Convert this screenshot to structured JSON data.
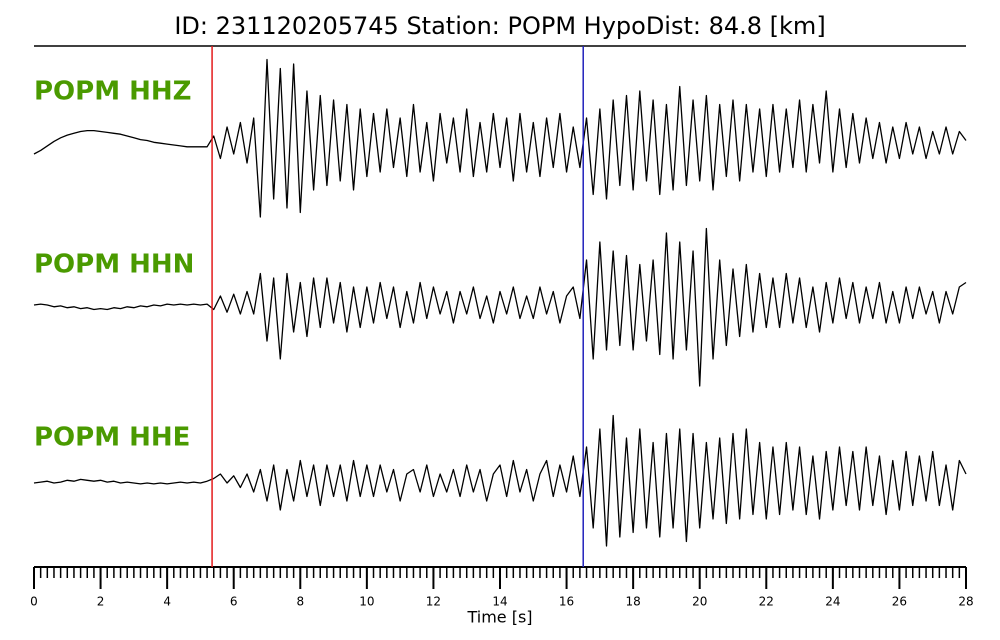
{
  "chart_data": {
    "type": "line",
    "title": "ID: 231120205745   Station: POPM   HypoDist:    84.8 [km]",
    "xlabel": "Time [s]",
    "xlim": [
      0,
      28
    ],
    "xticks": [
      0,
      2,
      4,
      6,
      8,
      10,
      12,
      14,
      16,
      18,
      20,
      22,
      24,
      26,
      28
    ],
    "xminor": [
      0,
      0.2,
      0.4,
      0.6,
      0.8,
      1,
      1.2,
      1.4,
      1.6,
      1.8,
      2,
      2.2,
      2.4,
      2.6,
      2.8,
      3,
      3.2,
      3.4,
      3.6,
      3.8,
      4,
      4.2,
      4.4,
      4.6,
      4.8,
      5,
      5.2,
      5.4,
      5.6,
      5.8,
      6,
      6.2,
      6.4,
      6.6,
      6.8,
      7,
      7.2,
      7.4,
      7.6,
      7.8,
      8,
      8.2,
      8.4,
      8.6,
      8.8,
      9,
      9.2,
      9.4,
      9.6,
      9.8,
      10,
      10.2,
      10.4,
      10.6,
      10.8,
      11,
      11.2,
      11.4,
      11.6,
      11.8,
      12,
      12.2,
      12.4,
      12.6,
      12.8,
      13,
      13.2,
      13.4,
      13.6,
      13.8,
      14,
      14.2,
      14.4,
      14.6,
      14.8,
      15,
      15.2,
      15.4,
      15.6,
      15.8,
      16,
      16.2,
      16.4,
      16.6,
      16.8,
      17,
      17.2,
      17.4,
      17.6,
      17.8,
      18,
      18.2,
      18.4,
      18.6,
      18.8,
      19,
      19.2,
      19.4,
      19.6,
      19.8,
      20,
      20.2,
      20.4,
      20.6,
      20.8,
      21,
      21.2,
      21.4,
      21.6,
      21.8,
      22,
      22.2,
      22.4,
      22.6,
      22.8,
      23,
      23.2,
      23.4,
      23.6,
      23.8,
      24,
      24.2,
      24.4,
      24.6,
      24.8,
      25,
      25.2,
      25.4,
      25.6,
      25.8,
      26,
      26.2,
      26.4,
      26.6,
      26.8,
      27,
      27.2,
      27.4,
      27.6,
      27.8,
      28
    ],
    "x": [
      0,
      0.2,
      0.4,
      0.6,
      0.8,
      1,
      1.2,
      1.4,
      1.6,
      1.8,
      2,
      2.2,
      2.4,
      2.6,
      2.8,
      3,
      3.2,
      3.4,
      3.6,
      3.8,
      4,
      4.2,
      4.4,
      4.6,
      4.8,
      5,
      5.2,
      5.4,
      5.6,
      5.8,
      6,
      6.2,
      6.4,
      6.6,
      6.8,
      7,
      7.2,
      7.4,
      7.6,
      7.8,
      8,
      8.2,
      8.4,
      8.6,
      8.8,
      9,
      9.2,
      9.4,
      9.6,
      9.8,
      10,
      10.2,
      10.4,
      10.6,
      10.8,
      11,
      11.2,
      11.4,
      11.6,
      11.8,
      12,
      12.2,
      12.4,
      12.6,
      12.8,
      13,
      13.2,
      13.4,
      13.6,
      13.8,
      14,
      14.2,
      14.4,
      14.6,
      14.8,
      15,
      15.2,
      15.4,
      15.6,
      15.8,
      16,
      16.2,
      16.4,
      16.6,
      16.8,
      17,
      17.2,
      17.4,
      17.6,
      17.8,
      18,
      18.2,
      18.4,
      18.6,
      18.8,
      19,
      19.2,
      19.4,
      19.6,
      19.8,
      20,
      20.2,
      20.4,
      20.6,
      20.8,
      21,
      21.2,
      21.4,
      21.6,
      21.8,
      22,
      22.2,
      22.4,
      22.6,
      22.8,
      23,
      23.2,
      23.4,
      23.6,
      23.8,
      24,
      24.2,
      24.4,
      24.6,
      24.8,
      25,
      25.2,
      25.4,
      25.6,
      25.8,
      26,
      26.2,
      26.4,
      26.6,
      26.8,
      27,
      27.2,
      27.4,
      27.6,
      27.8,
      28
    ],
    "label_color": "#4a9a00",
    "line_color": "#000000",
    "vlines": [
      {
        "x": 5.35,
        "color": "#e41a1c"
      },
      {
        "x": 16.5,
        "color": "#2222bb"
      }
    ],
    "series": [
      {
        "name": "POPM HHZ",
        "values": [
          -0.1,
          -0.06,
          -0.01,
          0.04,
          0.08,
          0.11,
          0.13,
          0.15,
          0.16,
          0.16,
          0.15,
          0.14,
          0.13,
          0.12,
          0.1,
          0.08,
          0.06,
          0.05,
          0.03,
          0.02,
          0.01,
          0.0,
          -0.01,
          -0.02,
          -0.02,
          -0.02,
          -0.02,
          0.1,
          -0.15,
          0.2,
          -0.1,
          0.25,
          -0.2,
          0.3,
          -0.8,
          0.95,
          -0.6,
          0.85,
          -0.7,
          0.9,
          -0.75,
          0.6,
          -0.5,
          0.55,
          -0.45,
          0.5,
          -0.4,
          0.45,
          -0.5,
          0.4,
          -0.35,
          0.35,
          -0.3,
          0.4,
          -0.25,
          0.3,
          -0.35,
          0.45,
          -0.3,
          0.25,
          -0.4,
          0.35,
          -0.2,
          0.3,
          -0.3,
          0.4,
          -0.35,
          0.25,
          -0.3,
          0.35,
          -0.25,
          0.3,
          -0.4,
          0.35,
          -0.3,
          0.25,
          -0.35,
          0.3,
          -0.25,
          0.35,
          -0.3,
          0.2,
          -0.25,
          0.3,
          -0.55,
          0.4,
          -0.6,
          0.5,
          -0.45,
          0.55,
          -0.5,
          0.6,
          -0.4,
          0.5,
          -0.55,
          0.45,
          -0.5,
          0.65,
          -0.45,
          0.5,
          -0.4,
          0.55,
          -0.5,
          0.45,
          -0.35,
          0.5,
          -0.4,
          0.45,
          -0.3,
          0.4,
          -0.35,
          0.45,
          -0.3,
          0.4,
          -0.25,
          0.5,
          -0.3,
          0.45,
          -0.2,
          0.6,
          -0.3,
          0.4,
          -0.25,
          0.35,
          -0.2,
          0.3,
          -0.15,
          0.25,
          -0.2,
          0.2,
          -0.15,
          0.25,
          -0.1,
          0.2,
          -0.15,
          0.15,
          -0.1,
          0.2,
          -0.1,
          0.15,
          0.05
        ]
      },
      {
        "name": "POPM HHN",
        "values": [
          0.0,
          0.01,
          0.0,
          -0.02,
          -0.01,
          -0.03,
          -0.02,
          -0.04,
          -0.03,
          -0.05,
          -0.04,
          -0.05,
          -0.03,
          -0.04,
          -0.02,
          -0.03,
          -0.01,
          -0.02,
          0.0,
          -0.01,
          0.01,
          0.0,
          0.01,
          0.0,
          0.01,
          0.0,
          0.01,
          -0.05,
          0.1,
          -0.08,
          0.12,
          -0.1,
          0.15,
          -0.1,
          0.35,
          -0.4,
          0.3,
          -0.6,
          0.35,
          -0.3,
          0.25,
          -0.35,
          0.3,
          -0.25,
          0.3,
          -0.2,
          0.25,
          -0.3,
          0.2,
          -0.25,
          0.2,
          -0.2,
          0.25,
          -0.15,
          0.2,
          -0.25,
          0.15,
          -0.2,
          0.25,
          -0.15,
          0.2,
          -0.1,
          0.15,
          -0.2,
          0.15,
          -0.1,
          0.2,
          -0.15,
          0.1,
          -0.2,
          0.15,
          -0.1,
          0.2,
          -0.15,
          0.1,
          -0.15,
          0.2,
          -0.1,
          0.15,
          -0.2,
          0.1,
          0.2,
          -0.15,
          0.5,
          -0.6,
          0.7,
          -0.5,
          0.6,
          -0.45,
          0.55,
          -0.5,
          0.45,
          -0.4,
          0.5,
          -0.55,
          0.8,
          -0.6,
          0.7,
          -0.5,
          0.6,
          -0.9,
          0.85,
          -0.6,
          0.5,
          -0.45,
          0.4,
          -0.35,
          0.45,
          -0.3,
          0.35,
          -0.25,
          0.3,
          -0.25,
          0.35,
          -0.2,
          0.3,
          -0.25,
          0.2,
          -0.3,
          0.25,
          -0.2,
          0.3,
          -0.15,
          0.25,
          -0.2,
          0.2,
          -0.15,
          0.25,
          -0.2,
          0.15,
          -0.2,
          0.2,
          -0.15,
          0.2,
          -0.1,
          0.15,
          -0.2,
          0.15,
          -0.1,
          0.2,
          0.25
        ]
      },
      {
        "name": "POPM HHE",
        "values": [
          0.0,
          0.01,
          0.02,
          0.0,
          0.01,
          0.03,
          0.02,
          0.04,
          0.03,
          0.02,
          0.03,
          0.01,
          0.02,
          0.0,
          0.01,
          0.0,
          -0.01,
          0.0,
          -0.01,
          0.0,
          -0.01,
          0.0,
          0.01,
          0.0,
          0.01,
          0.0,
          0.02,
          0.05,
          0.1,
          0.0,
          0.08,
          -0.05,
          0.1,
          -0.1,
          0.15,
          -0.2,
          0.2,
          -0.3,
          0.15,
          -0.2,
          0.25,
          -0.15,
          0.2,
          -0.25,
          0.2,
          -0.15,
          0.2,
          -0.2,
          0.25,
          -0.15,
          0.2,
          -0.15,
          0.2,
          -0.1,
          0.15,
          -0.2,
          0.1,
          0.15,
          -0.1,
          0.2,
          -0.15,
          0.1,
          -0.1,
          0.15,
          -0.15,
          0.2,
          -0.1,
          0.15,
          -0.2,
          0.1,
          0.2,
          -0.15,
          0.25,
          -0.1,
          0.15,
          -0.2,
          0.1,
          0.25,
          -0.15,
          0.2,
          -0.1,
          0.3,
          -0.15,
          0.4,
          -0.5,
          0.6,
          -0.7,
          0.75,
          -0.6,
          0.5,
          -0.55,
          0.6,
          -0.5,
          0.45,
          -0.6,
          0.55,
          -0.5,
          0.6,
          -0.65,
          0.55,
          -0.5,
          0.45,
          -0.4,
          0.5,
          -0.45,
          0.55,
          -0.4,
          0.6,
          -0.35,
          0.45,
          -0.4,
          0.4,
          -0.35,
          0.45,
          -0.3,
          0.4,
          -0.35,
          0.3,
          -0.4,
          0.35,
          -0.3,
          0.4,
          -0.25,
          0.35,
          -0.3,
          0.4,
          -0.25,
          0.3,
          -0.35,
          0.25,
          -0.3,
          0.35,
          -0.25,
          0.3,
          -0.2,
          0.35,
          -0.25,
          0.2,
          -0.3,
          0.25,
          0.1
        ]
      }
    ],
    "ylim": [
      -1,
      1
    ]
  }
}
